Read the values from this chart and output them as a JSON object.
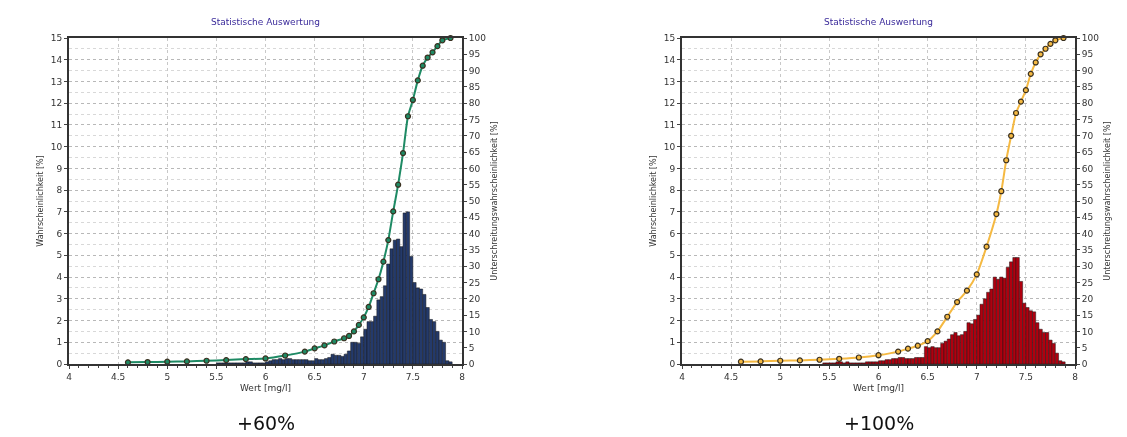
{
  "chart_data": [
    {
      "type": "histogram",
      "title": "Statistische Auswertung",
      "xlabel": "Wert [mg/l]",
      "ylabel": "Wahrscheinlichkeit [%]",
      "y2label": "Unterschreitungswahrscheinlichkeit [%]",
      "annotations": [
        "+60%"
      ],
      "bins": [
        4.6,
        4.633,
        4.667,
        4.7,
        4.733,
        4.767,
        4.8,
        4.833,
        4.867,
        4.9,
        4.933,
        4.967,
        5,
        5.033,
        5.067,
        5.1,
        5.133,
        5.167,
        5.2,
        5.233,
        5.267,
        5.3,
        5.333,
        5.367,
        5.4,
        5.433,
        5.467,
        5.5,
        5.533,
        5.567,
        5.6,
        5.633,
        5.667,
        5.7,
        5.733,
        5.767,
        5.8,
        5.833,
        5.867,
        5.9,
        5.933,
        5.967,
        6,
        6.033,
        6.067,
        6.1,
        6.133,
        6.167,
        6.2,
        6.233,
        6.267,
        6.3,
        6.333,
        6.367,
        6.4,
        6.433,
        6.467,
        6.5,
        6.533,
        6.567,
        6.6,
        6.633,
        6.667,
        6.7,
        6.733,
        6.767,
        6.8,
        6.833,
        6.867,
        6.9,
        6.933,
        6.967,
        7,
        7.033,
        7.067,
        7.1,
        7.133,
        7.167,
        7.2,
        7.233,
        7.267,
        7.3,
        7.333,
        7.367,
        7.4,
        7.433,
        7.467,
        7.5,
        7.533,
        7.567,
        7.6,
        7.633,
        7.667,
        7.7,
        7.733,
        7.767,
        7.8,
        7.833,
        7.867,
        7.9
      ],
      "series": [
        {
          "color": "#243a6b",
          "values": [
            0,
            0,
            0,
            0,
            0,
            0,
            0,
            0,
            0,
            0,
            0,
            0,
            0,
            0,
            0,
            0,
            0,
            0,
            0,
            0,
            0,
            0,
            0,
            0,
            0,
            0,
            0,
            0.05,
            0.05,
            0.05,
            0.05,
            0.05,
            0.05,
            0.05,
            0.05,
            0.05,
            0.1,
            0.1,
            0.05,
            0.05,
            0.05,
            0.05,
            0.1,
            0.15,
            0.2,
            0.2,
            0.25,
            0.2,
            0.25,
            0.25,
            0.2,
            0.2,
            0.2,
            0.2,
            0.2,
            0.15,
            0.15,
            0.25,
            0.2,
            0.2,
            0.25,
            0.3,
            0.45,
            0.4,
            0.4,
            0.35,
            0.45,
            0.6,
            1.0,
            1.0,
            0.95,
            1.25,
            1.6,
            1.95,
            1.95,
            2.2,
            2.95,
            3.1,
            3.6,
            4.6,
            5.3,
            5.7,
            5.75,
            5.4,
            6.95,
            7.0,
            4.95,
            3.75,
            3.5,
            3.45,
            3.2,
            2.6,
            2.05,
            1.95,
            1.5,
            1.1,
            1.0,
            0.15,
            0.1
          ]
        },
        {
          "type": "line",
          "axis": "y2",
          "color": "#1e8a64",
          "marker": "circle",
          "x": [
            4.6,
            4.8,
            5,
            5.2,
            5.4,
            5.6,
            5.8,
            6,
            6.2,
            6.4,
            6.5,
            6.6,
            6.7,
            6.8,
            6.85,
            6.9,
            6.95,
            7,
            7.05,
            7.1,
            7.15,
            7.2,
            7.25,
            7.3,
            7.35,
            7.4,
            7.45,
            7.5,
            7.55,
            7.6,
            7.65,
            7.7,
            7.75,
            7.8,
            7.883
          ],
          "values": [
            0.5,
            0.6,
            0.7,
            0.8,
            1.0,
            1.2,
            1.5,
            1.7,
            2.6,
            3.8,
            4.8,
            5.7,
            6.9,
            7.9,
            8.6,
            10,
            12,
            14.3,
            17.5,
            21.7,
            26,
            31.4,
            38,
            46.8,
            55,
            64.7,
            76,
            81,
            87,
            91.5,
            94,
            95.6,
            97.5,
            99.3,
            100
          ]
        }
      ],
      "xlim": [
        4,
        8
      ],
      "xticks": [
        4,
        4.5,
        5,
        5.5,
        6,
        6.5,
        7,
        7.5,
        8
      ],
      "ylim": [
        0,
        15
      ],
      "yticks": [
        0,
        1,
        2,
        3,
        4,
        5,
        6,
        7,
        8,
        9,
        10,
        11,
        12,
        13,
        14,
        15
      ],
      "y2lim": [
        0,
        100
      ],
      "y2ticks": [
        0,
        5,
        10,
        15,
        20,
        25,
        30,
        35,
        40,
        45,
        50,
        55,
        60,
        65,
        70,
        75,
        80,
        85,
        90,
        95,
        100
      ],
      "grid": true
    },
    {
      "type": "histogram",
      "title": "Statistische Auswertung",
      "xlabel": "Wert [mg/l]",
      "ylabel": "Wahrscheinlichkeit [%]",
      "y2label": "Unterschreitungswahrscheinlichkeit [%]",
      "annotations": [
        "+100%"
      ],
      "bins": [
        4.6,
        4.633,
        4.667,
        4.7,
        4.733,
        4.767,
        4.8,
        4.833,
        4.867,
        4.9,
        4.933,
        4.967,
        5,
        5.033,
        5.067,
        5.1,
        5.133,
        5.167,
        5.2,
        5.233,
        5.267,
        5.3,
        5.333,
        5.367,
        5.4,
        5.433,
        5.467,
        5.5,
        5.533,
        5.567,
        5.6,
        5.633,
        5.667,
        5.7,
        5.733,
        5.767,
        5.8,
        5.833,
        5.867,
        5.9,
        5.933,
        5.967,
        6,
        6.033,
        6.067,
        6.1,
        6.133,
        6.167,
        6.2,
        6.233,
        6.267,
        6.3,
        6.333,
        6.367,
        6.4,
        6.433,
        6.467,
        6.5,
        6.533,
        6.567,
        6.6,
        6.633,
        6.667,
        6.7,
        6.733,
        6.767,
        6.8,
        6.833,
        6.867,
        6.9,
        6.933,
        6.967,
        7,
        7.033,
        7.067,
        7.1,
        7.133,
        7.167,
        7.2,
        7.233,
        7.267,
        7.3,
        7.333,
        7.367,
        7.4,
        7.433,
        7.467,
        7.5,
        7.533,
        7.567,
        7.6,
        7.633,
        7.667,
        7.7,
        7.733,
        7.767,
        7.8,
        7.833,
        7.867,
        7.9
      ],
      "series": [
        {
          "color": "#b0000f",
          "values": [
            0,
            0,
            0,
            0,
            0,
            0,
            0,
            0,
            0,
            0,
            0,
            0,
            0,
            0,
            0,
            0,
            0,
            0,
            0,
            0,
            0,
            0,
            0,
            0,
            0,
            0.05,
            0.05,
            0.05,
            0.05,
            0.1,
            0.1,
            0.05,
            0.1,
            0.05,
            0.05,
            0.05,
            0.05,
            0.05,
            0.1,
            0.1,
            0.1,
            0.1,
            0.15,
            0.15,
            0.2,
            0.2,
            0.25,
            0.25,
            0.3,
            0.3,
            0.25,
            0.25,
            0.25,
            0.3,
            0.3,
            0.3,
            0.8,
            0.75,
            0.8,
            0.75,
            0.75,
            0.95,
            1.05,
            1.15,
            1.35,
            1.45,
            1.3,
            1.35,
            1.5,
            1.9,
            1.85,
            2.05,
            2.25,
            2.75,
            3.0,
            3.3,
            3.45,
            4.0,
            3.9,
            4.0,
            3.95,
            4.45,
            4.7,
            4.9,
            4.9,
            3.8,
            2.8,
            2.6,
            2.45,
            2.4,
            1.9,
            1.6,
            1.45,
            1.45,
            1.1,
            0.95,
            0.5,
            0.15,
            0.1
          ]
        },
        {
          "type": "line",
          "axis": "y2",
          "color": "#f5b942",
          "marker": "circle",
          "x": [
            4.6,
            4.8,
            5,
            5.2,
            5.4,
            5.6,
            5.8,
            6,
            6.2,
            6.3,
            6.4,
            6.5,
            6.6,
            6.7,
            6.8,
            6.9,
            7,
            7.1,
            7.2,
            7.25,
            7.3,
            7.35,
            7.4,
            7.45,
            7.5,
            7.55,
            7.6,
            7.65,
            7.7,
            7.75,
            7.8,
            7.883
          ],
          "values": [
            0.7,
            0.8,
            1.0,
            1.1,
            1.3,
            1.6,
            2.0,
            2.7,
            3.8,
            4.7,
            5.6,
            7,
            10,
            14.5,
            19,
            22.5,
            27.5,
            36,
            46,
            53,
            62.5,
            70,
            77,
            80.5,
            84,
            89,
            92.5,
            95,
            96.7,
            98.2,
            99.3,
            100
          ]
        }
      ],
      "xlim": [
        4,
        8
      ],
      "xticks": [
        4,
        4.5,
        5,
        5.5,
        6,
        6.5,
        7,
        7.5,
        8
      ],
      "ylim": [
        0,
        15
      ],
      "yticks": [
        0,
        1,
        2,
        3,
        4,
        5,
        6,
        7,
        8,
        9,
        10,
        11,
        12,
        13,
        14,
        15
      ],
      "y2lim": [
        0,
        100
      ],
      "y2ticks": [
        0,
        5,
        10,
        15,
        20,
        25,
        30,
        35,
        40,
        45,
        50,
        55,
        60,
        65,
        70,
        75,
        80,
        85,
        90,
        95,
        100
      ],
      "grid": true
    }
  ]
}
